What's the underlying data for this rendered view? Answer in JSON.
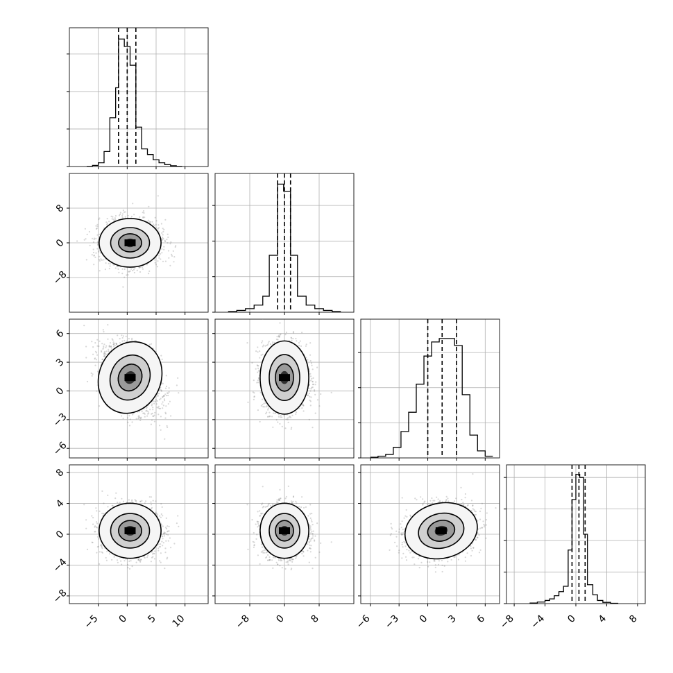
{
  "chart_data": {
    "type": "corner",
    "dims": [
      {
        "lim": [
          -10,
          14
        ],
        "ticks": [
          -5,
          0,
          5,
          10
        ],
        "tick_labels": [
          "−5",
          "0",
          "5",
          "10"
        ],
        "center": 0,
        "sd": 2.1,
        "skew": 3.2,
        "quantiles": [
          -1.5,
          0,
          1.5
        ],
        "hist": {
          "edges": [
            -7,
            -6,
            -5,
            -4,
            -3,
            -2,
            -1.5,
            -0.5,
            0.5,
            1.5,
            2.5,
            3.5,
            4.5,
            5.5,
            6.5,
            7.5,
            8.5,
            9.5
          ],
          "counts": [
            0.005,
            0.03,
            0.1,
            0.4,
            1.3,
            2.1,
            3.4,
            3.2,
            2.7,
            1.05,
            0.47,
            0.32,
            0.18,
            0.1,
            0.05,
            0.02,
            0.005
          ],
          "ymax": 3.7,
          "yticks": [
            1,
            2,
            3
          ]
        }
      },
      {
        "lim": [
          -16,
          16
        ],
        "ticks": [
          -8,
          0,
          8
        ],
        "tick_labels": [
          "−8",
          "0",
          "8"
        ],
        "center": 0,
        "sd": 2.2,
        "skew": 0,
        "quantiles": [
          -1.6,
          0,
          1.4
        ],
        "hist": {
          "edges": [
            -13,
            -11,
            -9,
            -7,
            -5,
            -3.5,
            -1.6,
            -0.2,
            1.4,
            3,
            5,
            7,
            9,
            11,
            13
          ],
          "counts": [
            0.02,
            0.05,
            0.1,
            0.2,
            0.45,
            1.6,
            3.6,
            3.4,
            1.6,
            0.45,
            0.2,
            0.1,
            0.05,
            0.02
          ],
          "ymax": 3.9,
          "yticks": [
            1,
            2,
            3
          ]
        }
      },
      {
        "lim": [
          -7,
          7.5
        ],
        "ticks": [
          -6,
          -3,
          0,
          3,
          6
        ],
        "tick_labels": [
          "−6",
          "−3",
          "0",
          "3",
          "6"
        ],
        "center": 1.4,
        "sd": 1.5,
        "skew": -0.5,
        "quantiles": [
          0,
          1.5,
          3
        ],
        "hist": {
          "edges": [
            -6,
            -5.2,
            -4.4,
            -3.6,
            -2.8,
            -2,
            -1.2,
            -0.4,
            0.4,
            1.2,
            2,
            2.8,
            3.6,
            4.4,
            5.2,
            6,
            6.8
          ],
          "counts": [
            0.02,
            0.05,
            0.1,
            0.3,
            0.75,
            1.3,
            2.1,
            2.9,
            3.3,
            3.4,
            3.4,
            3.2,
            1.8,
            0.65,
            0.2,
            0.05
          ],
          "ymax": 3.95,
          "yticks": [
            1,
            2,
            3
          ]
        }
      },
      {
        "lim": [
          -9,
          9
        ],
        "ticks": [
          -8,
          -4,
          0,
          4,
          8
        ],
        "tick_labels": [
          "−8",
          "−4",
          "0",
          "4",
          "8"
        ],
        "center": 0.45,
        "sd": 1.4,
        "skew": 0,
        "quantiles": [
          -0.5,
          0.4,
          1.2
        ],
        "hist": {
          "edges": [
            -6,
            -5,
            -4,
            -3.4,
            -2.8,
            -2.2,
            -1.6,
            -1,
            -0.5,
            0,
            0.5,
            1,
            1.5,
            2.2,
            2.8,
            3.5,
            4.5,
            5.5
          ],
          "counts": [
            0.02,
            0.05,
            0.1,
            0.15,
            0.25,
            0.38,
            0.55,
            1.7,
            3.3,
            4.1,
            4.0,
            2.2,
            0.6,
            0.28,
            0.1,
            0.04,
            0.01
          ],
          "ymax": 4.4,
          "yticks": [
            1,
            2,
            3,
            4
          ]
        }
      }
    ],
    "pairs": [
      {
        "row": 1,
        "col": 0,
        "corr": 0.0
      },
      {
        "row": 2,
        "col": 0,
        "corr": -0.35
      },
      {
        "row": 2,
        "col": 1,
        "corr": 0.0
      },
      {
        "row": 3,
        "col": 0,
        "corr": 0.0
      },
      {
        "row": 3,
        "col": 1,
        "corr": 0.0
      },
      {
        "row": 3,
        "col": 2,
        "corr": 0.2
      }
    ],
    "contour_levels": [
      0.4,
      1.1,
      2.0
    ],
    "grid": true,
    "quantile_lines": "dashed",
    "colors": {
      "line": "#000000",
      "points": "#6e6e6e",
      "grid": "#b0b0b0",
      "frame": "#222222"
    }
  }
}
